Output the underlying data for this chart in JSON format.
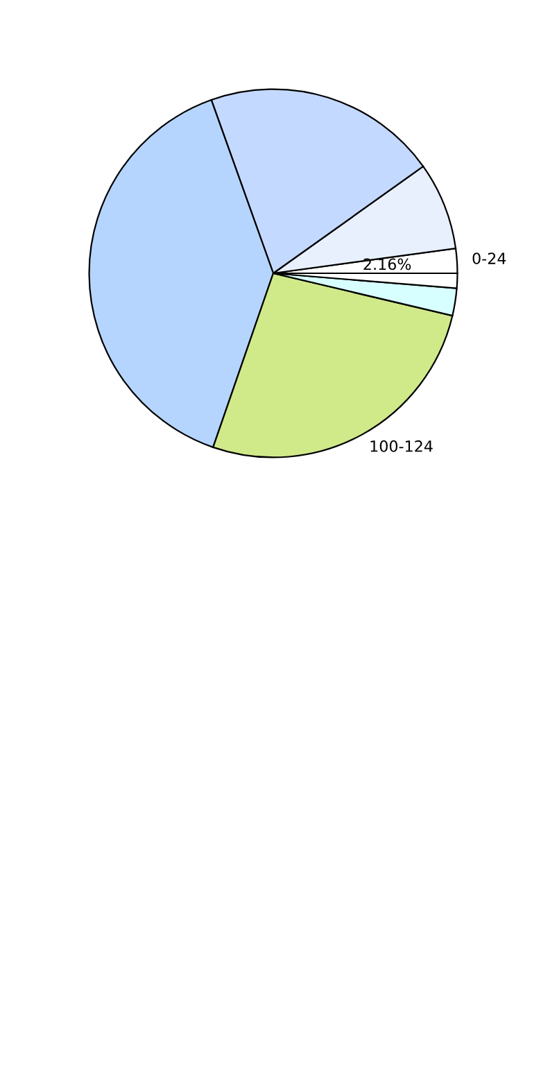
{
  "chart_data": {
    "type": "pie",
    "categories": [
      "0-24",
      null,
      null,
      null,
      "100-124",
      null,
      null
    ],
    "values": [
      2.16,
      7.7,
      20.6,
      39.24,
      26.6,
      2.4,
      1.3
    ],
    "value_labels": [
      "2.16%",
      null,
      null,
      null,
      null,
      null,
      null
    ],
    "colors": [
      "#ffffff",
      "#e8f0fe",
      "#c4d9ff",
      "#b5d5ff",
      "#d0ea8a",
      "#d8ffff",
      "#ffffff"
    ]
  }
}
